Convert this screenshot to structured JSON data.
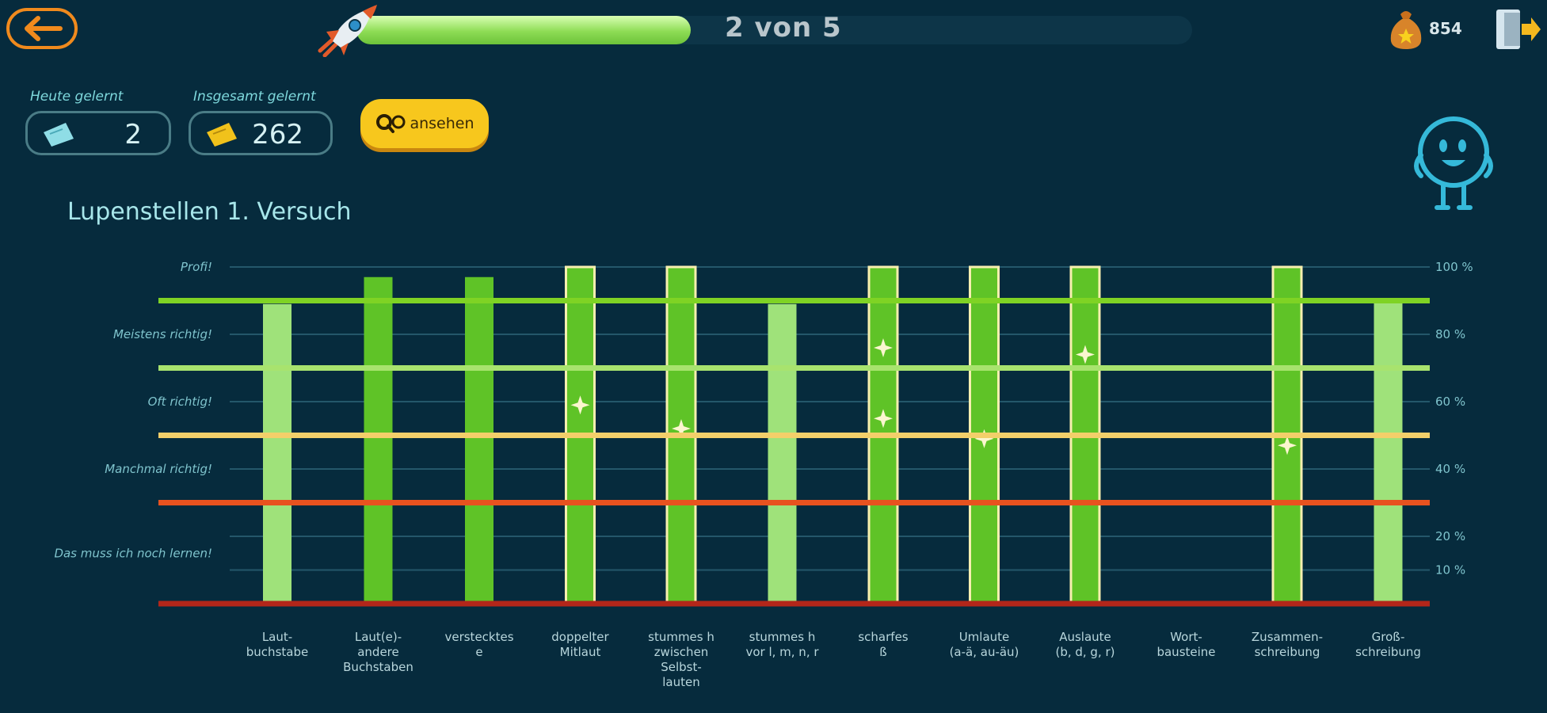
{
  "header": {
    "progress_text": "2 von 5",
    "progress_fraction": 0.4,
    "coins": "854"
  },
  "stats": {
    "today_label": "Heute gelernt",
    "today_value": "2",
    "total_label": "Insgesamt gelernt",
    "total_value": "262",
    "view_button": "ansehen"
  },
  "chart_title": "Lupenstellen 1. Versuch",
  "colors": {
    "background": "#062b3d",
    "bar_light": "#9fe27a",
    "bar_dark": "#5fc327",
    "bar_outline": "#f8efb0",
    "line_green": "#7fd324",
    "line_lightgreen": "#a8e36e",
    "line_yellow": "#f3cf6a",
    "line_orange": "#e8521f",
    "line_red": "#b3261a"
  },
  "chart_data": {
    "type": "bar",
    "title": "Lupenstellen 1. Versuch",
    "ylim": [
      0,
      100
    ],
    "left_axis_labels": [
      "Profi!",
      "Meistens richtig!",
      "Oft richtig!",
      "Manchmal richtig!",
      "Das muss ich noch lernen!"
    ],
    "right_axis_ticks": [
      "100 %",
      "80 %",
      "60 %",
      "40 %",
      "20 %",
      "10 %"
    ],
    "categories": [
      "Laut-\nbuchstabe",
      "Laut(e)-\nandere\nBuchstaben",
      "verstecktes\ne",
      "doppelter\nMitlaut",
      "stummes h\nzwischen\nSelbst-\nlauten",
      "stummes h\nvor l, m, n, r",
      "scharfes\nß",
      "Umlaute\n(a-ä, au-äu)",
      "Auslaute\n(b, d, g, r)",
      "Wort-\nbausteine",
      "Zusammen-\nschreibung",
      "Groß-\nschreibung"
    ],
    "values": [
      89,
      97,
      97,
      100,
      100,
      89,
      100,
      100,
      100,
      null,
      100,
      90
    ],
    "shade": [
      "light",
      "dark",
      "dark",
      "dark",
      "dark",
      "light",
      "dark",
      "dark",
      "dark",
      "none",
      "dark",
      "light"
    ],
    "outlined": [
      false,
      false,
      false,
      true,
      true,
      false,
      true,
      true,
      true,
      false,
      true,
      false
    ],
    "stars": [
      [],
      [],
      [],
      [
        59
      ],
      [
        52
      ],
      [],
      [
        76,
        55
      ],
      [
        49
      ],
      [
        74
      ],
      [],
      [
        47
      ],
      []
    ],
    "threshold_lines": [
      90,
      70,
      50,
      30,
      0
    ]
  }
}
